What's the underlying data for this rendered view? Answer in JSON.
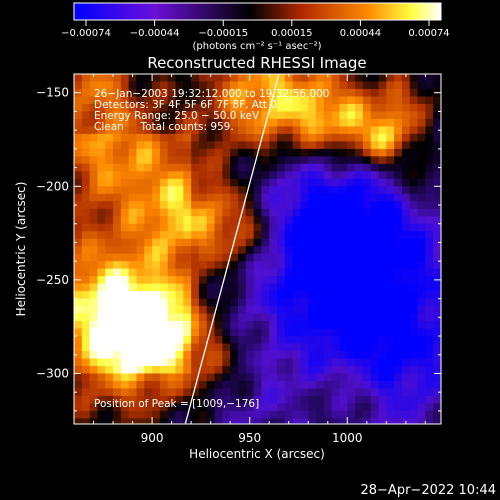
{
  "chart_data": {
    "type": "heatmap",
    "title": "Reconstructed RHESSI Image",
    "xlabel": "Heliocentric X (arcsec)",
    "ylabel": "Heliocentric Y (arcsec)",
    "xlim": [
      860,
      1048
    ],
    "ylim": [
      -327,
      -140
    ],
    "x_ticks": [
      900,
      950,
      1000
    ],
    "y_ticks": [
      -150,
      -200,
      -250,
      -300
    ],
    "x_tick_labels": [
      "900",
      "950",
      "1000"
    ],
    "y_tick_labels": [
      "−150",
      "−200",
      "−250",
      "−300"
    ],
    "annotations": [
      "26−Jan−2003 19:32:12.000 to 19:32:56.000",
      "Detectors: 3F 4F 5F 6F 7F 8F, Att 0",
      "Energy Range: 25.0 − 50.0 keV",
      "Clean     Total counts: 959."
    ],
    "peak_label": "Position of Peak = [1009,−176]",
    "peak": [
      1009,
      -176
    ],
    "limb_line": [
      [
        917,
        -327
      ],
      [
        965,
        -140
      ]
    ],
    "colorbar": {
      "range": [
        -0.00074,
        0.00074
      ],
      "tick_labels": [
        "−0.00074",
        "−0.00044",
        "−0.00015",
        "0.00015",
        "0.00044",
        "0.00074"
      ],
      "unit_label": "(photons cm⁻² s⁻¹ asec⁻²)",
      "colormap": [
        "#0000ff",
        "#5010d0",
        "#000000",
        "#b03000",
        "#ff8800",
        "#ffff40",
        "#ffffff"
      ]
    },
    "grid": false,
    "legend": "none"
  },
  "footer": {
    "date": "28−Apr−2022 10:44"
  }
}
